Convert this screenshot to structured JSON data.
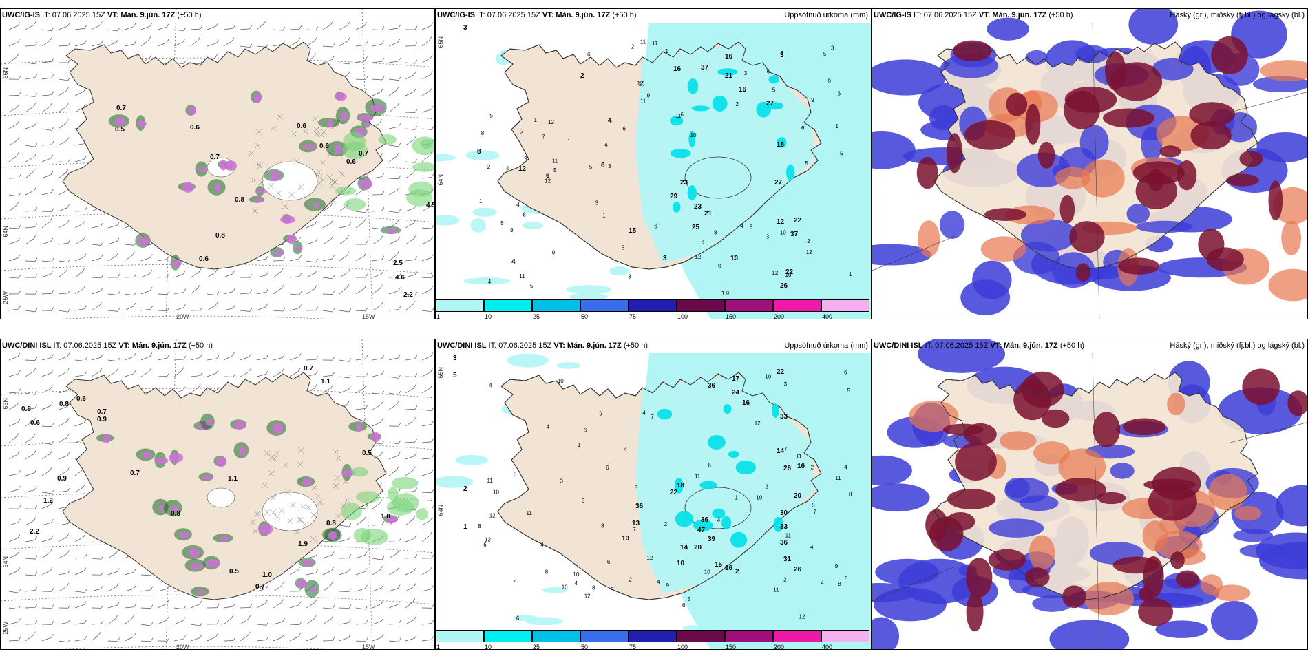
{
  "panels": [
    {
      "id": "p1",
      "title_model": "UWC/IG-IS",
      "title_it": " IT: 07.06.2025 15Z ",
      "title_vt_label": "VT:",
      "title_vt": " Mán. 9.jún. 17Z",
      "title_lead": " (+50 h)",
      "right_title": "",
      "type": "convective",
      "lon_labels": [
        "20W",
        "15W"
      ],
      "lat_labels": [
        "66N",
        "64N",
        "25W"
      ]
    },
    {
      "id": "p2",
      "title_model": "UWC/IG-IS",
      "title_it": " IT: 07.06.2025 15Z ",
      "title_vt_label": "VT:",
      "title_vt": " Mán. 9.jún. 17Z",
      "title_lead": " (+50 h)",
      "right_title": "Uppsöfnuð úrkoma (mm)",
      "type": "precip",
      "lat_labels": [
        "65N",
        "64N"
      ]
    },
    {
      "id": "p3",
      "title_model": "UWC/IG-IS",
      "title_it": " IT: 07.06.2025 15Z ",
      "title_vt_label": "VT:",
      "title_vt": " Mán. 9.jún. 17Z",
      "title_lead": " (+50 h)",
      "right_title": "Háský (gr.), miðský (fj.bl.) og lágský (bl.)",
      "type": "clouds"
    },
    {
      "id": "p4",
      "title_model": "UWC/DINI ISL",
      "title_it": " IT: 07.06.2025 15Z ",
      "title_vt_label": "VT:",
      "title_vt": " Mán. 9.jún. 17Z",
      "title_lead": " (+50 h)",
      "right_title": "",
      "type": "convective",
      "lon_labels": [
        "20W",
        "15W"
      ],
      "lat_labels": [
        "66N",
        "64N",
        "25W"
      ]
    },
    {
      "id": "p5",
      "title_model": "UWC/DINI ISL",
      "title_it": " IT: 07.06.2025 15Z ",
      "title_vt_label": "VT:",
      "title_vt": " Mán. 9.jún. 17Z",
      "title_lead": " (+50 h)",
      "right_title": "Uppsöfnuð úrkoma (mm)",
      "type": "precip",
      "lat_labels": [
        "65N",
        "64N"
      ]
    },
    {
      "id": "p6",
      "title_model": "UWC/DINI ISL",
      "title_it": " IT: 07.06.2025 15Z ",
      "title_vt_label": "VT:",
      "title_vt": " Mán. 9.jún. 17Z",
      "title_lead": " (+50 h)",
      "right_title": "Háský (gr.), miðský (fj.bl.) og lágský (bl.)",
      "type": "clouds"
    }
  ],
  "colorbar": {
    "labels": [
      "1",
      "10",
      "25",
      "50",
      "75",
      "100",
      "150",
      "200",
      "400"
    ],
    "colors": [
      "#b2f5f5",
      "#00eeee",
      "#00c0e8",
      "#3a6ee8",
      "#2020b0",
      "#6a0a4a",
      "#a0107a",
      "#f018a8",
      "#f4b0f0"
    ]
  },
  "colors": {
    "land": "#f2e4d4",
    "coast": "#333333",
    "precip_light": "#b2f5f5",
    "precip_mid": "#00e0e8",
    "low_cloud": "#3c3cd8",
    "mid_cloud": "#7a1030",
    "high_cloud": "#e87850",
    "conv_magenta": "#d070d8",
    "conv_green": "#1a6a2a"
  },
  "p1_labels": [
    {
      "t": "0.7",
      "x": 168,
      "y": 147
    },
    {
      "t": "0.5",
      "x": 166,
      "y": 178
    },
    {
      "t": "0.6",
      "x": 275,
      "y": 175
    },
    {
      "t": "0.7",
      "x": 304,
      "y": 218
    },
    {
      "t": "0.6",
      "x": 430,
      "y": 173
    },
    {
      "t": "0.6",
      "x": 463,
      "y": 202
    },
    {
      "t": "0.6",
      "x": 502,
      "y": 225
    },
    {
      "t": "0.7",
      "x": 520,
      "y": 213
    },
    {
      "t": "0.8",
      "x": 340,
      "y": 280
    },
    {
      "t": "0.8",
      "x": 312,
      "y": 332
    },
    {
      "t": "0.6",
      "x": 288,
      "y": 366
    },
    {
      "t": "4.5",
      "x": 618,
      "y": 288
    },
    {
      "t": "2.5",
      "x": 570,
      "y": 372
    },
    {
      "t": "4.6",
      "x": 573,
      "y": 393
    },
    {
      "t": "2.2",
      "x": 585,
      "y": 418
    }
  ],
  "p2_labels": [
    {
      "t": "3",
      "x": 40,
      "y": 30
    },
    {
      "t": "3",
      "x": 500,
      "y": 70
    },
    {
      "t": "8",
      "x": 60,
      "y": 210
    },
    {
      "t": "12",
      "x": 120,
      "y": 235
    },
    {
      "t": "6",
      "x": 160,
      "y": 245
    },
    {
      "t": "2",
      "x": 210,
      "y": 100
    },
    {
      "t": "4",
      "x": 250,
      "y": 165
    },
    {
      "t": "6",
      "x": 240,
      "y": 230
    },
    {
      "t": "16",
      "x": 345,
      "y": 90
    },
    {
      "t": "37",
      "x": 385,
      "y": 88
    },
    {
      "t": "16",
      "x": 420,
      "y": 72
    },
    {
      "t": "21",
      "x": 420,
      "y": 100
    },
    {
      "t": "16",
      "x": 440,
      "y": 120
    },
    {
      "t": "27",
      "x": 480,
      "y": 140
    },
    {
      "t": "18",
      "x": 495,
      "y": 200
    },
    {
      "t": "23",
      "x": 355,
      "y": 255
    },
    {
      "t": "29",
      "x": 340,
      "y": 275
    },
    {
      "t": "23",
      "x": 375,
      "y": 290
    },
    {
      "t": "21",
      "x": 390,
      "y": 300
    },
    {
      "t": "25",
      "x": 372,
      "y": 320
    },
    {
      "t": "27",
      "x": 492,
      "y": 255
    },
    {
      "t": "22",
      "x": 520,
      "y": 310
    },
    {
      "t": "37",
      "x": 515,
      "y": 330
    },
    {
      "t": "12",
      "x": 495,
      "y": 312
    },
    {
      "t": "10",
      "x": 428,
      "y": 365
    },
    {
      "t": "9",
      "x": 410,
      "y": 377
    },
    {
      "t": "19",
      "x": 415,
      "y": 416
    },
    {
      "t": "22",
      "x": 508,
      "y": 385
    },
    {
      "t": "26",
      "x": 500,
      "y": 405
    },
    {
      "t": "15",
      "x": 280,
      "y": 325
    },
    {
      "t": "3",
      "x": 330,
      "y": 365
    },
    {
      "t": "4",
      "x": 110,
      "y": 370
    }
  ],
  "p4_labels": [
    {
      "t": "0.7",
      "x": 440,
      "y": 45
    },
    {
      "t": "1.1",
      "x": 465,
      "y": 64
    },
    {
      "t": "0.8",
      "x": 30,
      "y": 104
    },
    {
      "t": "0.6",
      "x": 43,
      "y": 124
    },
    {
      "t": "0.8",
      "x": 85,
      "y": 97
    },
    {
      "t": "0.6",
      "x": 110,
      "y": 89
    },
    {
      "t": "0.9",
      "x": 140,
      "y": 119
    },
    {
      "t": "0.7",
      "x": 140,
      "y": 108
    },
    {
      "t": "0.7",
      "x": 188,
      "y": 197
    },
    {
      "t": "0.9",
      "x": 82,
      "y": 205
    },
    {
      "t": "1.2",
      "x": 62,
      "y": 237
    },
    {
      "t": "2.2",
      "x": 42,
      "y": 282
    },
    {
      "t": "0.8",
      "x": 247,
      "y": 256
    },
    {
      "t": "1.1",
      "x": 330,
      "y": 205
    },
    {
      "t": "0.5",
      "x": 525,
      "y": 168
    },
    {
      "t": "1.0",
      "x": 552,
      "y": 260
    },
    {
      "t": "0.8",
      "x": 473,
      "y": 270
    },
    {
      "t": "0.5",
      "x": 332,
      "y": 340
    },
    {
      "t": "1.0",
      "x": 380,
      "y": 345
    },
    {
      "t": "0.7",
      "x": 370,
      "y": 362
    },
    {
      "t": "1.9",
      "x": 432,
      "y": 300
    }
  ],
  "p5_labels": [
    {
      "t": "3",
      "x": 25,
      "y": 30
    },
    {
      "t": "5",
      "x": 25,
      "y": 55
    },
    {
      "t": "17",
      "x": 430,
      "y": 60
    },
    {
      "t": "24",
      "x": 430,
      "y": 80
    },
    {
      "t": "36",
      "x": 395,
      "y": 70
    },
    {
      "t": "16",
      "x": 445,
      "y": 95
    },
    {
      "t": "22",
      "x": 495,
      "y": 50
    },
    {
      "t": "33",
      "x": 500,
      "y": 115
    },
    {
      "t": "14",
      "x": 495,
      "y": 165
    },
    {
      "t": "26",
      "x": 505,
      "y": 190
    },
    {
      "t": "16",
      "x": 525,
      "y": 187
    },
    {
      "t": "20",
      "x": 520,
      "y": 230
    },
    {
      "t": "30",
      "x": 500,
      "y": 255
    },
    {
      "t": "33",
      "x": 500,
      "y": 275
    },
    {
      "t": "36",
      "x": 500,
      "y": 298
    },
    {
      "t": "31",
      "x": 505,
      "y": 322
    },
    {
      "t": "26",
      "x": 520,
      "y": 337
    },
    {
      "t": "36",
      "x": 290,
      "y": 245
    },
    {
      "t": "22",
      "x": 340,
      "y": 225
    },
    {
      "t": "18",
      "x": 350,
      "y": 215
    },
    {
      "t": "47",
      "x": 380,
      "y": 280
    },
    {
      "t": "36",
      "x": 385,
      "y": 265
    },
    {
      "t": "39",
      "x": 395,
      "y": 293
    },
    {
      "t": "20",
      "x": 375,
      "y": 305
    },
    {
      "t": "14",
      "x": 355,
      "y": 305
    },
    {
      "t": "13",
      "x": 285,
      "y": 270
    },
    {
      "t": "10",
      "x": 270,
      "y": 292
    },
    {
      "t": "10",
      "x": 350,
      "y": 328
    },
    {
      "t": "15",
      "x": 405,
      "y": 330
    },
    {
      "t": "16",
      "x": 420,
      "y": 335
    },
    {
      "t": "2",
      "x": 435,
      "y": 340
    },
    {
      "t": "2",
      "x": 40,
      "y": 220
    },
    {
      "t": "1",
      "x": 40,
      "y": 275
    }
  ]
}
